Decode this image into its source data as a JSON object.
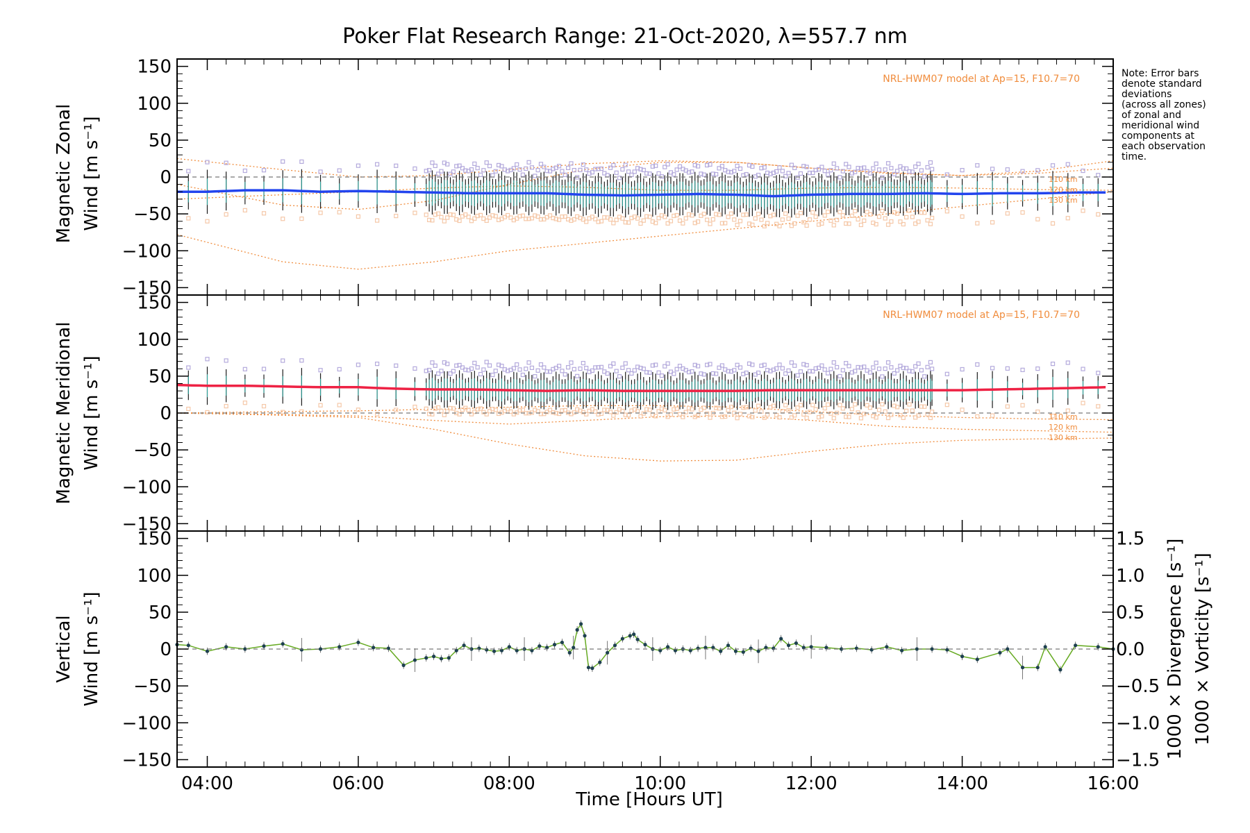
{
  "title": "Poker Flat Research Range: 21-Oct-2020, λ=557.7 nm",
  "note_lines": [
    "Note: Error bars",
    "denote standard",
    "deviations",
    "(across all zones)",
    "of zonal and",
    "meridional wind",
    "components at",
    "each observation",
    "time."
  ],
  "x_axis": {
    "label": "Time [Hours UT]",
    "range": [
      3.6,
      16.0
    ],
    "tick_values": [
      4,
      6,
      8,
      10,
      12,
      14,
      16
    ],
    "tick_labels": [
      "04:00",
      "06:00",
      "08:00",
      "10:00",
      "12:00",
      "14:00",
      "16:00"
    ]
  },
  "y_tick_labels": [
    "150",
    "100",
    "50",
    "0",
    "−50",
    "−100",
    "−150"
  ],
  "right_tick_labels": [
    "1.5",
    "1.0",
    "0.5",
    "0.0",
    "−0.5",
    "−1.0",
    "−1.5"
  ],
  "colors": {
    "zonal": "#2244ee",
    "meridional": "#ee2244",
    "vertical": "#66aa22",
    "model": "#f08c3c",
    "divergence": "#5ab4e0",
    "vorticity": "#f0468c",
    "zone_purple": "#b4aadc",
    "zone_teal": "#2aa8a0",
    "zone_peach": "#f5c8a8"
  },
  "chart_data": [
    {
      "type": "line",
      "panel": "zonal",
      "ylabel": [
        "Magnetic Zonal",
        "Wind [m s⁻¹]"
      ],
      "ylim": [
        -160,
        160
      ],
      "model_label": "NRL-HWM07 model at Ap=15, F10.7=70",
      "model_curve_labels": [
        "110 km",
        "120 km",
        "130 km"
      ],
      "model_curves": {
        "x": [
          3.6,
          5,
          6,
          7,
          8,
          9,
          10,
          11,
          12,
          13,
          14,
          15,
          16
        ],
        "110 km": [
          -30,
          -24,
          -20,
          -15,
          -12,
          -14,
          -18,
          -18,
          -15,
          -14,
          -15,
          -17,
          -18
        ],
        "120 km": [
          -10,
          -38,
          -44,
          -32,
          -10,
          10,
          20,
          20,
          12,
          5,
          2,
          5,
          12
        ],
        "130 km": [
          -78,
          -115,
          -125,
          -115,
          -100,
          -90,
          -80,
          -70,
          -60,
          -50,
          -40,
          -30,
          -20
        ],
        "upper": [
          25,
          10,
          0,
          2,
          10,
          18,
          22,
          20,
          12,
          6,
          2,
          8,
          22
        ]
      },
      "series": [
        {
          "name": "zonal wind",
          "x": [
            3.6,
            4.0,
            4.5,
            5.0,
            5.5,
            6.0,
            6.5,
            7.0,
            7.5,
            8.0,
            8.5,
            9.0,
            9.5,
            10.0,
            10.5,
            11.0,
            11.5,
            12.0,
            12.5,
            13.0,
            13.5,
            14.0,
            14.5,
            15.0,
            15.5,
            15.9
          ],
          "y": [
            -20,
            -20,
            -18,
            -18,
            -20,
            -19,
            -20,
            -21,
            -22,
            -22,
            -22,
            -24,
            -25,
            -24,
            -23,
            -24,
            -26,
            -24,
            -23,
            -23,
            -22,
            -23,
            -22,
            -22,
            -21,
            -21
          ]
        }
      ]
    },
    {
      "type": "line",
      "panel": "meridional",
      "ylabel": [
        "Magnetic Meridional",
        "Wind [m s⁻¹]"
      ],
      "ylim": [
        -160,
        160
      ],
      "model_label": "NRL-HWM07 model at Ap=15, F10.7=70",
      "model_curve_labels": [
        "110 km",
        "120 km",
        "130 km"
      ],
      "model_curves": {
        "x": [
          3.6,
          5,
          6,
          7,
          8,
          9,
          10,
          11,
          12,
          13,
          14,
          15,
          16
        ],
        "110 km": [
          0,
          2,
          3,
          5,
          8,
          10,
          10,
          8,
          2,
          -3,
          -6,
          -8,
          -9
        ],
        "120 km": [
          0,
          -2,
          -4,
          -10,
          -15,
          -10,
          -5,
          -4,
          -10,
          -18,
          -22,
          -24,
          -26
        ],
        "130 km": [
          0,
          -3,
          -6,
          -22,
          -42,
          -58,
          -65,
          -64,
          -52,
          -42,
          -37,
          -35,
          -34
        ]
      },
      "series": [
        {
          "name": "meridional wind",
          "x": [
            3.6,
            4.0,
            4.5,
            5.0,
            5.5,
            6.0,
            6.5,
            7.0,
            7.5,
            8.0,
            8.5,
            9.0,
            9.5,
            10.0,
            10.5,
            11.0,
            11.5,
            12.0,
            12.5,
            13.0,
            13.5,
            14.0,
            14.5,
            15.0,
            15.5,
            15.9
          ],
          "y": [
            38,
            37,
            37,
            36,
            35,
            35,
            33,
            32,
            32,
            31,
            30,
            31,
            30,
            30,
            30,
            30,
            31,
            31,
            31,
            31,
            31,
            31,
            32,
            33,
            34,
            35
          ]
        }
      ]
    },
    {
      "type": "line",
      "panel": "vertical",
      "ylabel": [
        "Vertical",
        "Wind [m s⁻¹]"
      ],
      "ylim": [
        -160,
        160
      ],
      "y2label": [
        "1000 × Divergence [s⁻¹]",
        "1000 × Vorticity [s⁻¹]"
      ],
      "y2lim": [
        -1.6,
        1.6
      ],
      "series": [
        {
          "name": "vertical wind",
          "x": [
            3.6,
            3.75,
            4.0,
            4.25,
            4.5,
            4.75,
            5.0,
            5.25,
            5.5,
            5.75,
            6.0,
            6.2,
            6.4,
            6.6,
            6.75,
            6.9,
            7.0,
            7.1,
            7.2,
            7.3,
            7.4,
            7.5,
            7.6,
            7.7,
            7.8,
            7.9,
            8.0,
            8.1,
            8.2,
            8.3,
            8.4,
            8.5,
            8.6,
            8.7,
            8.8,
            8.85,
            8.9,
            8.95,
            9.0,
            9.05,
            9.1,
            9.2,
            9.3,
            9.4,
            9.5,
            9.6,
            9.65,
            9.7,
            9.8,
            9.9,
            10.0,
            10.1,
            10.2,
            10.3,
            10.4,
            10.5,
            10.6,
            10.7,
            10.8,
            10.9,
            11.0,
            11.1,
            11.2,
            11.3,
            11.4,
            11.5,
            11.6,
            11.7,
            11.8,
            11.9,
            12.0,
            12.2,
            12.4,
            12.6,
            12.8,
            13.0,
            13.2,
            13.4,
            13.6,
            13.8,
            14.0,
            14.2,
            14.5,
            14.6,
            14.8,
            15.0,
            15.1,
            15.3,
            15.5,
            15.8,
            16.0
          ],
          "y": [
            6,
            5,
            -3,
            3,
            0,
            4,
            7,
            -1,
            0,
            3,
            9,
            2,
            1,
            -22,
            -15,
            -12,
            -10,
            -13,
            -12,
            -2,
            5,
            0,
            1,
            -1,
            -3,
            -2,
            3,
            -2,
            0,
            -2,
            4,
            2,
            6,
            9,
            -5,
            2,
            26,
            34,
            18,
            -25,
            -26,
            -18,
            -5,
            5,
            14,
            18,
            20,
            13,
            6,
            0,
            -2,
            3,
            -2,
            0,
            -2,
            1,
            2,
            2,
            -3,
            5,
            -3,
            -4,
            1,
            -3,
            2,
            1,
            14,
            5,
            8,
            2,
            3,
            2,
            0,
            1,
            -1,
            3,
            -2,
            0,
            0,
            -1,
            -10,
            -14,
            -5,
            0,
            -25,
            -25,
            3,
            -28,
            5,
            3,
            0
          ]
        }
      ]
    }
  ]
}
